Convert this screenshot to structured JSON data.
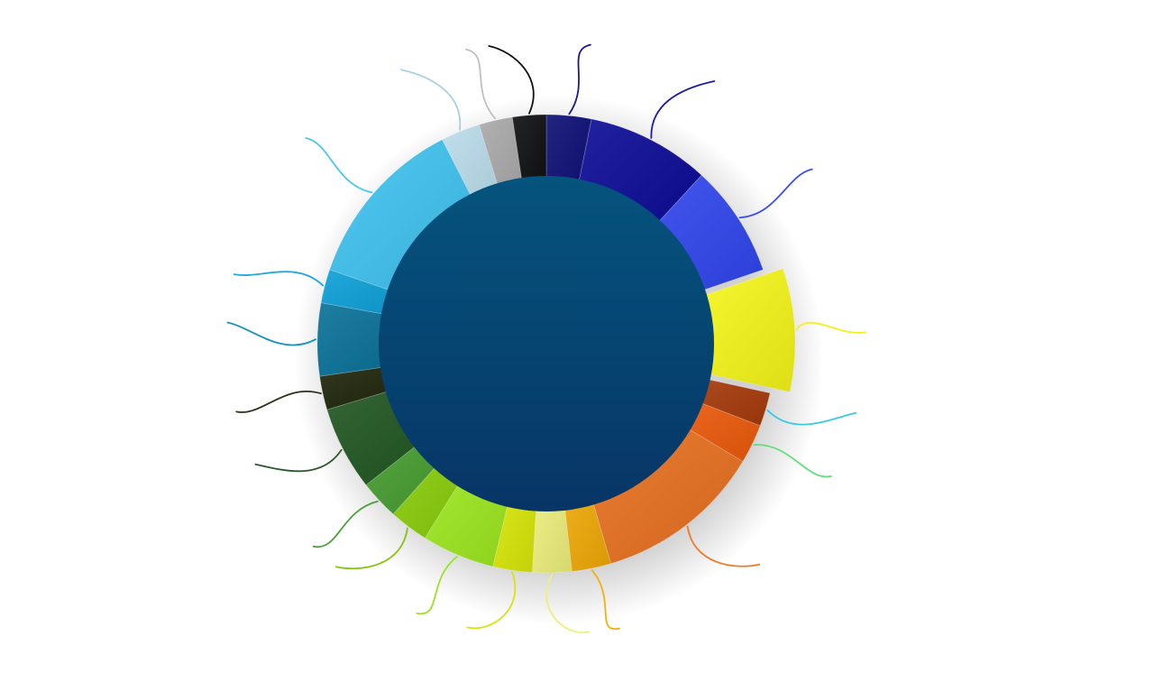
{
  "chart_data": {
    "type": "pie",
    "variant": "donut",
    "title": "",
    "legend": "none",
    "labels_visible": false,
    "center_color": "#054a7a",
    "slices": [
      {
        "value": 4.0,
        "color": "#0b0b75",
        "leader": "#1a1a8f"
      },
      {
        "value": 11.0,
        "color": "#0a0a96",
        "leader": "#1c1ca8"
      },
      {
        "value": 10.0,
        "color": "#2f45ee",
        "leader": "#3a50f0"
      },
      {
        "value": 11.0,
        "color": "#f7f71a",
        "leader": "#f5f020",
        "exploded": true
      },
      {
        "value": 3.0,
        "color": "#a83a0a",
        "leader": "#3ac8e6"
      },
      {
        "value": 3.5,
        "color": "#ee5a0a",
        "leader": "#5ee07a"
      },
      {
        "value": 15.0,
        "color": "#e9701f",
        "leader": "#ee7a2a"
      },
      {
        "value": 3.5,
        "color": "#f0aa06",
        "leader": "#f2b010"
      },
      {
        "value": 3.5,
        "color": "#eef07c",
        "leader": "#eef07c"
      },
      {
        "value": 3.5,
        "color": "#d8e806",
        "leader": "#d6e40c"
      },
      {
        "value": 6.5,
        "color": "#9de81e",
        "leader": "#9ae424"
      },
      {
        "value": 3.5,
        "color": "#88cc08",
        "leader": "#86c210"
      },
      {
        "value": 3.5,
        "color": "#449c2e",
        "leader": "#4aa03a"
      },
      {
        "value": 7.5,
        "color": "#1f5520",
        "leader": "#2b5a2b"
      },
      {
        "value": 3.0,
        "color": "#1c2408",
        "leader": "#2a321c"
      },
      {
        "value": 6.5,
        "color": "#067098",
        "leader": "#1890c0"
      },
      {
        "value": 3.0,
        "color": "#0a9ed6",
        "leader": "#20a8dc"
      },
      {
        "value": 15.5,
        "color": "#3dc2ef",
        "leader": "#4cc8ee"
      },
      {
        "value": 3.5,
        "color": "#b9dbea",
        "leader": "#a8d0e4"
      },
      {
        "value": 3.0,
        "color": "#a8a8a8",
        "leader": "#c0c0c0"
      },
      {
        "value": 3.0,
        "color": "#0b0d0e",
        "leader": "#111111"
      }
    ]
  }
}
